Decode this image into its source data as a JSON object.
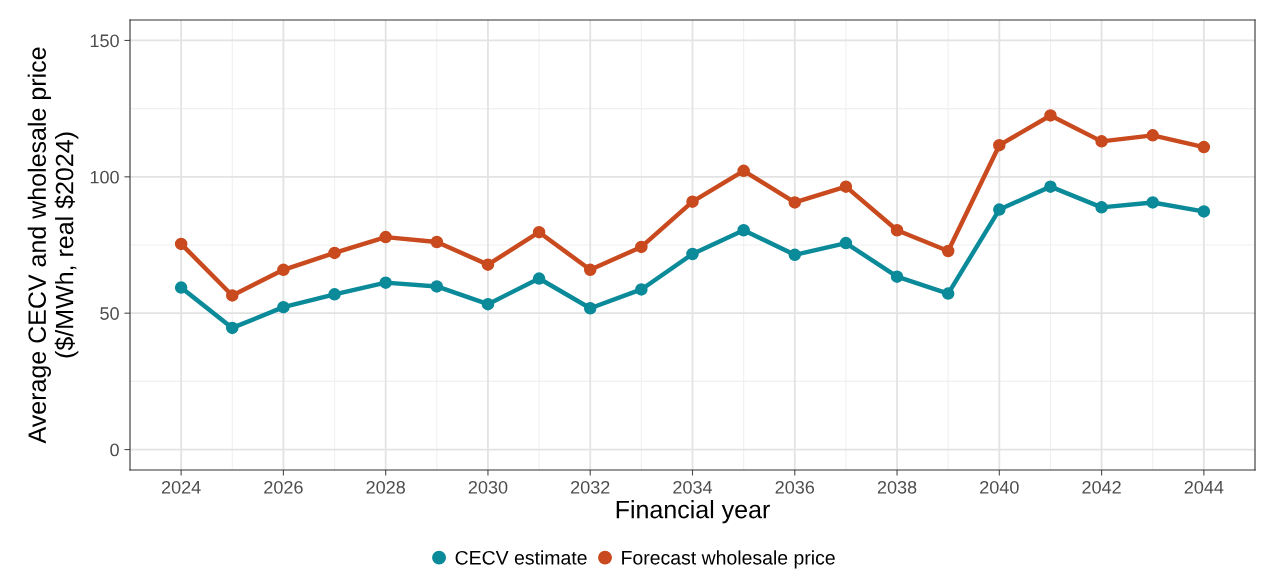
{
  "chart_data": {
    "type": "line",
    "xlabel": "Financial year",
    "ylabel": "Average CECV and wholesale price\n($/MWh, real $2024)",
    "x": [
      2024,
      2025,
      2026,
      2027,
      2028,
      2029,
      2030,
      2031,
      2032,
      2033,
      2034,
      2035,
      2036,
      2037,
      2038,
      2039,
      2040,
      2041,
      2042,
      2043,
      2044
    ],
    "series": [
      {
        "name": "CECV estimate",
        "color": "#0b8a99",
        "values": [
          59.4,
          44.6,
          52.2,
          56.9,
          61.2,
          59.8,
          53.3,
          62.7,
          51.8,
          58.7,
          71.7,
          80.4,
          71.4,
          75.7,
          63.4,
          57.2,
          88.0,
          96.4,
          88.8,
          90.6,
          87.3
        ]
      },
      {
        "name": "Forecast wholesale price",
        "color": "#c94a1e",
        "values": [
          75.4,
          56.5,
          65.9,
          72.1,
          77.9,
          76.1,
          67.8,
          79.7,
          65.9,
          74.3,
          90.9,
          102.2,
          90.6,
          96.4,
          80.4,
          72.8,
          111.6,
          122.5,
          113.0,
          115.2,
          110.9
        ]
      }
    ],
    "xlim": [
      2023,
      2045
    ],
    "ylim": [
      -7.5,
      157.5
    ],
    "xticks": [
      2024,
      2026,
      2028,
      2030,
      2032,
      2034,
      2036,
      2038,
      2040,
      2042,
      2044
    ],
    "yticks": [
      0,
      50,
      100,
      150
    ],
    "grid": true,
    "legend": "bottom",
    "marker": "circle",
    "line_style": "solid"
  }
}
